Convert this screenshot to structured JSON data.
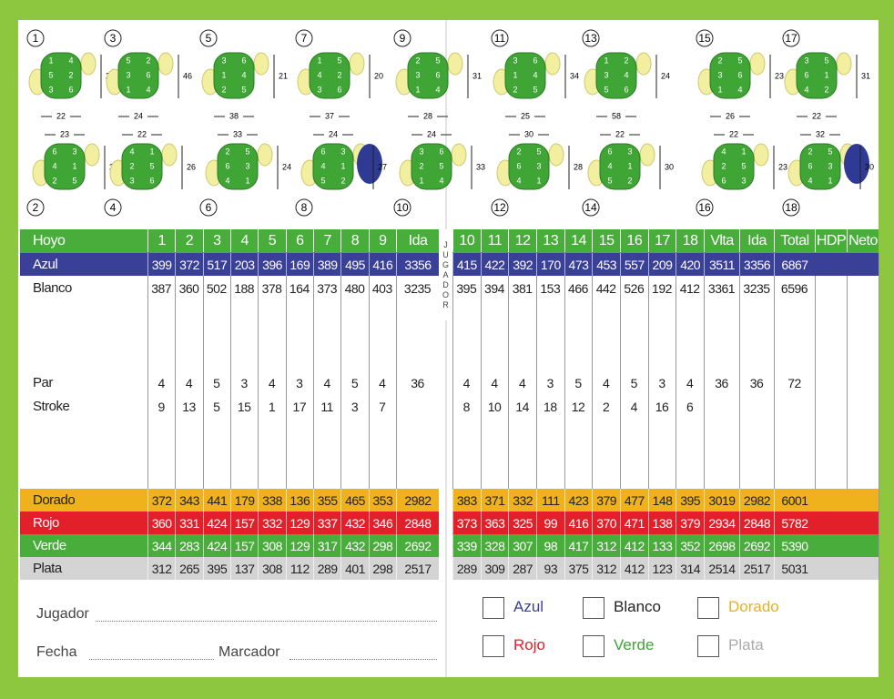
{
  "holes": [
    {
      "number": 1,
      "sections": [
        "1",
        "4",
        "5",
        "2",
        "3",
        "6"
      ],
      "width": "22",
      "depth": "23"
    },
    {
      "number": 2,
      "sections": [
        "6",
        "3",
        "4",
        "1",
        "2",
        "5"
      ],
      "width": "23",
      "depth": "29"
    },
    {
      "number": 3,
      "sections": [
        "5",
        "2",
        "3",
        "6",
        "1",
        "4"
      ],
      "width": "24",
      "depth": "46"
    },
    {
      "number": 4,
      "sections": [
        "4",
        "1",
        "2",
        "5",
        "3",
        "6"
      ],
      "width": "22",
      "depth": "26"
    },
    {
      "number": 5,
      "sections": [
        "3",
        "6",
        "1",
        "4",
        "2",
        "5"
      ],
      "width": "38",
      "depth": "21"
    },
    {
      "number": 6,
      "sections": [
        "2",
        "5",
        "6",
        "3",
        "4",
        "1"
      ],
      "width": "33",
      "depth": "24"
    },
    {
      "number": 7,
      "sections": [
        "1",
        "5",
        "4",
        "2",
        "3",
        "6"
      ],
      "width": "37",
      "depth": "20"
    },
    {
      "number": 8,
      "sections": [
        "6",
        "3",
        "4",
        "1",
        "5",
        "2"
      ],
      "width": "24",
      "depth": "27"
    },
    {
      "number": 9,
      "sections": [
        "2",
        "5",
        "3",
        "6",
        "1",
        "4"
      ],
      "width": "28",
      "depth": "31"
    },
    {
      "number": 10,
      "sections": [
        "3",
        "6",
        "2",
        "5",
        "1",
        "4"
      ],
      "width": "24",
      "depth": "33"
    },
    {
      "number": 11,
      "sections": [
        "3",
        "6",
        "1",
        "4",
        "2",
        "5"
      ],
      "width": "25",
      "depth": "34"
    },
    {
      "number": 12,
      "sections": [
        "2",
        "5",
        "6",
        "3",
        "4",
        "1"
      ],
      "width": "30",
      "depth": "28"
    },
    {
      "number": 13,
      "sections": [
        "1",
        "2",
        "3",
        "4",
        "5",
        "6"
      ],
      "width": "58",
      "depth": "24"
    },
    {
      "number": 14,
      "sections": [
        "6",
        "3",
        "4",
        "1",
        "5",
        "2"
      ],
      "width": "22",
      "depth": "30"
    },
    {
      "number": 15,
      "sections": [
        "2",
        "5",
        "3",
        "6",
        "1",
        "4"
      ],
      "width": "26",
      "depth": "23"
    },
    {
      "number": 16,
      "sections": [
        "4",
        "1",
        "2",
        "5",
        "6",
        "3"
      ],
      "width": "22",
      "depth": "23"
    },
    {
      "number": 17,
      "sections": [
        "3",
        "5",
        "6",
        "1",
        "4",
        "2"
      ],
      "width": "22",
      "depth": "31"
    },
    {
      "number": 18,
      "sections": [
        "2",
        "5",
        "6",
        "3",
        "4",
        "1"
      ],
      "width": "32",
      "depth": "30"
    }
  ],
  "table": {
    "header": [
      "Hoyo",
      "1",
      "2",
      "3",
      "4",
      "5",
      "6",
      "7",
      "8",
      "9",
      "Ida",
      "10",
      "11",
      "12",
      "13",
      "14",
      "15",
      "16",
      "17",
      "18",
      "Vlta",
      "Ida",
      "Total",
      "HDP",
      "Neto"
    ],
    "divider": "JUGADOR",
    "rows": [
      {
        "label": "Azul",
        "cells": [
          399,
          372,
          517,
          203,
          396,
          169,
          389,
          495,
          416,
          3356,
          415,
          422,
          392,
          170,
          473,
          453,
          557,
          209,
          420,
          3511,
          3356,
          6867
        ]
      },
      {
        "label": "Blanco",
        "cells": [
          387,
          360,
          502,
          188,
          378,
          164,
          373,
          480,
          403,
          3235,
          395,
          394,
          381,
          153,
          466,
          442,
          526,
          192,
          412,
          3361,
          3235,
          6596
        ]
      },
      {
        "label": "Par",
        "cells": [
          4,
          4,
          5,
          3,
          4,
          3,
          4,
          5,
          4,
          36,
          4,
          4,
          4,
          3,
          5,
          4,
          5,
          3,
          4,
          36,
          36,
          72
        ]
      },
      {
        "label": "Stroke",
        "cells": [
          9,
          13,
          5,
          15,
          1,
          17,
          11,
          3,
          7,
          null,
          8,
          10,
          14,
          18,
          12,
          2,
          4,
          16,
          6
        ]
      },
      {
        "label": "Dorado",
        "cells": [
          372,
          343,
          441,
          179,
          338,
          136,
          355,
          465,
          353,
          2982,
          383,
          371,
          332,
          111,
          423,
          379,
          477,
          148,
          395,
          3019,
          2982,
          6001
        ]
      },
      {
        "label": "Rojo",
        "cells": [
          360,
          331,
          424,
          157,
          332,
          129,
          337,
          432,
          346,
          2848,
          373,
          363,
          325,
          99,
          416,
          370,
          471,
          138,
          379,
          2934,
          2848,
          5782
        ]
      },
      {
        "label": "Verde",
        "cells": [
          344,
          283,
          424,
          157,
          308,
          129,
          317,
          432,
          298,
          2692,
          339,
          328,
          307,
          98,
          417,
          312,
          412,
          133,
          352,
          2698,
          2692,
          5390
        ]
      },
      {
        "label": "Plata",
        "cells": [
          312,
          265,
          395,
          137,
          308,
          112,
          289,
          401,
          298,
          2517,
          289,
          309,
          287,
          93,
          375,
          312,
          412,
          123,
          314,
          2514,
          2517,
          5031
        ]
      }
    ]
  },
  "footer": {
    "player": "Jugador",
    "date": "Fecha",
    "marker": "Marcador",
    "tees": [
      {
        "label": "Azul",
        "color": "#3a3f98"
      },
      {
        "label": "Blanco",
        "color": "#222222"
      },
      {
        "label": "Dorado",
        "color": "#e9b11f"
      },
      {
        "label": "Rojo",
        "color": "#e2202a"
      },
      {
        "label": "Verde",
        "color": "#3fa535"
      },
      {
        "label": "Plata",
        "color": "#aaaaaa"
      }
    ]
  }
}
